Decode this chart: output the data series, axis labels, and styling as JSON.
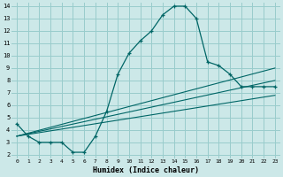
{
  "xlabel": "Humidex (Indice chaleur)",
  "bg_color": "#cce8e8",
  "grid_color": "#99cccc",
  "line_color": "#006666",
  "xmin": 0,
  "xmax": 23,
  "ymin": 2,
  "ymax": 14,
  "xticks": [
    0,
    1,
    2,
    3,
    4,
    5,
    6,
    7,
    8,
    9,
    10,
    11,
    12,
    13,
    14,
    15,
    16,
    17,
    18,
    19,
    20,
    21,
    22,
    23
  ],
  "yticks": [
    2,
    3,
    4,
    5,
    6,
    7,
    8,
    9,
    10,
    11,
    12,
    13,
    14
  ],
  "main_curve_x": [
    0,
    1,
    2,
    3,
    4,
    5,
    6,
    7,
    8,
    9,
    10,
    11,
    12,
    13,
    14,
    15,
    16,
    17,
    18,
    19,
    20,
    21,
    22,
    23
  ],
  "main_curve_y": [
    4.5,
    3.5,
    3.0,
    3.0,
    3.0,
    2.2,
    2.2,
    3.5,
    5.5,
    8.5,
    10.2,
    11.2,
    12.0,
    13.3,
    14.0,
    14.0,
    13.0,
    9.5,
    9.2,
    8.5,
    7.5,
    7.5,
    7.5,
    7.5
  ],
  "line1_x": [
    0,
    23
  ],
  "line1_y": [
    3.5,
    9.0
  ],
  "line2_x": [
    0,
    23
  ],
  "line2_y": [
    3.5,
    8.0
  ],
  "line3_x": [
    0,
    23
  ],
  "line3_y": [
    3.5,
    6.8
  ],
  "marker": "+"
}
